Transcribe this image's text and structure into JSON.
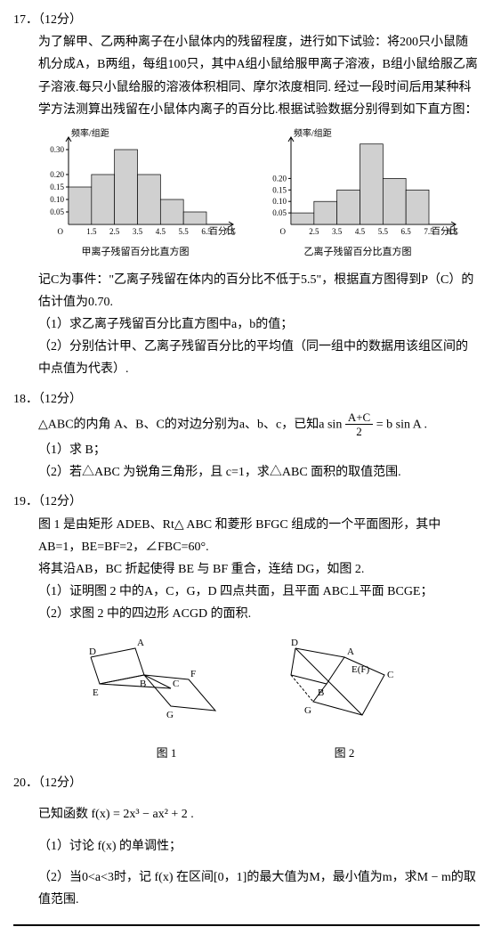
{
  "q17": {
    "header": "17．（12分）",
    "p1": "为了解甲、乙两种离子在小鼠体内的残留程度，进行如下试验：将200只小鼠随机分成A，B两组，每组100只，其中A组小鼠给服甲离子溶液，B组小鼠给服乙离子溶液.每只小鼠给服的溶液体积相同、摩尔浓度相同. 经过一段时间后用某种科学方法测算出残留在小鼠体内离子的百分比.根据试验数据分别得到如下直方图：",
    "chart_ylabel": "频率/组距",
    "chartA": {
      "caption": "甲离子残留百分比直方图",
      "xticks": [
        "O",
        "1.5",
        "2.5",
        "3.5",
        "4.5",
        "5.5",
        "6.5",
        "7.5"
      ],
      "yticks": [
        "0.05",
        "0.10",
        "0.15",
        "0.20",
        "0.30"
      ],
      "bars": [
        {
          "h": 0.15,
          "c": "#d0d0d0"
        },
        {
          "h": 0.2,
          "c": "#d0d0d0"
        },
        {
          "h": 0.3,
          "c": "#d0d0d0"
        },
        {
          "h": 0.2,
          "c": "#d0d0d0"
        },
        {
          "h": 0.1,
          "c": "#d0d0d0"
        },
        {
          "h": 0.05,
          "c": "#d0d0d0"
        }
      ],
      "xlabel": "百分比"
    },
    "chartB": {
      "caption": "乙离子残留百分比直方图",
      "xticks": [
        "O",
        "2.5",
        "3.5",
        "4.5",
        "5.5",
        "6.5",
        "7.5",
        "8.5"
      ],
      "yticks": [
        "0.05",
        "0.10",
        "0.15",
        "0.20"
      ],
      "bars": [
        {
          "h": 0.05,
          "c": "#d0d0d0"
        },
        {
          "h": 0.1,
          "c": "#d0d0d0"
        },
        {
          "h": 0.15,
          "c": "#d0d0d0"
        },
        {
          "h": 0.35,
          "c": "#d0d0d0"
        },
        {
          "h": 0.2,
          "c": "#d0d0d0"
        },
        {
          "h": 0.15,
          "c": "#d0d0d0"
        }
      ],
      "xlabel": "百分比"
    },
    "p2": "记C为事件：\"乙离子残留在体内的百分比不低于5.5\"，根据直方图得到P（C）的估计值为0.70.",
    "sub1": "（1）求乙离子残留百分比直方图中a，b的值；",
    "sub2": "（2）分别估计甲、乙离子残留百分比的平均值（同一组中的数据用该组区间的中点值为代表）."
  },
  "q18": {
    "header": "18．（12分）",
    "p1_pre": "△ABC的内角 A、B、C的对边分别为a、b、c，已知a sin",
    "p1_num": "A+C",
    "p1_den": "2",
    "p1_post": "= b sin A .",
    "sub1": "（1）求 B；",
    "sub2": "（2）若△ABC 为锐角三角形，且 c=1，求△ABC 面积的取值范围."
  },
  "q19": {
    "header": "19．（12分）",
    "p1": "图 1 是由矩形 ADEB、Rt△ ABC 和菱形 BFGC 组成的一个平面图形，其中 AB=1，BE=BF=2，∠FBC=60°.",
    "p2": "将其沿AB，BC 折起使得 BE 与 BF 重合，连结 DG，如图 2.",
    "sub1": "（1）证明图 2 中的A，C，G，D 四点共面，且平面 ABC⊥平面 BCGE；",
    "sub2": "（2）求图 2 中的四边形 ACGD 的面积.",
    "fig1_caption": "图 1",
    "fig2_caption": "图 2",
    "labels": {
      "A": "A",
      "B": "B",
      "C": "C",
      "D": "D",
      "E": "E",
      "F": "F",
      "G": "G",
      "EF": "E(F)"
    }
  },
  "q20": {
    "header": "20．（12分）",
    "p1": "已知函数 f(x) = 2x³ − ax² + 2 .",
    "sub1": "（1）讨论 f(x) 的单调性；",
    "sub2": "（2）当0<a<3时，记 f(x) 在区间[0，1]的最大值为M，最小值为m，求M − m的取值范围."
  },
  "style": {
    "axis_color": "#000000",
    "bar_stroke": "#000000",
    "grid_color": "#cccccc",
    "font_size_axis": 9
  }
}
